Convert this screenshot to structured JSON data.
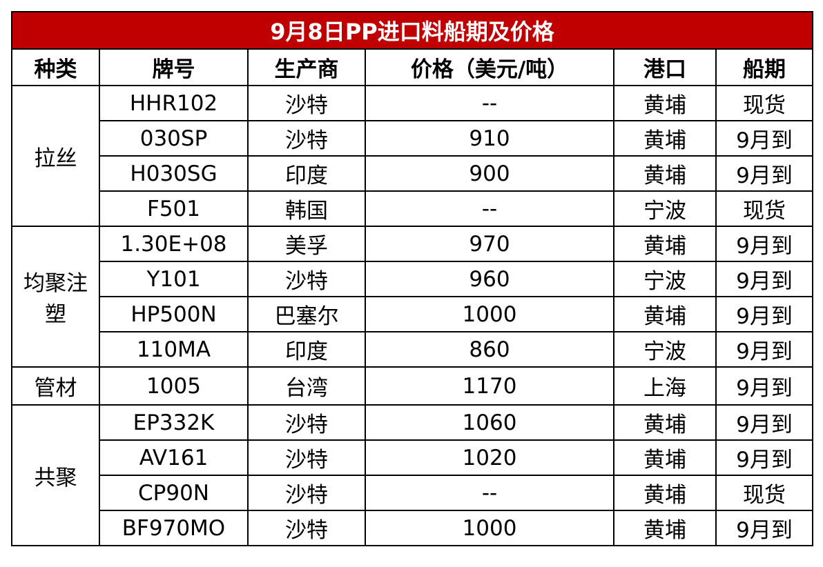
{
  "title": "9月8日PP进口料船期及价格",
  "colors": {
    "title_bg": "#c00000",
    "title_text": "#ffffff"
  },
  "headers": [
    "种类",
    "牌号",
    "生产商",
    "价格（美元/吨）",
    "港口",
    "船期"
  ],
  "groups": [
    {
      "category": "拉丝",
      "rows": [
        [
          "HHR102",
          "沙特",
          "--",
          "黄埔",
          "现货"
        ],
        [
          "030SP",
          "沙特",
          "910",
          "黄埔",
          "9月到"
        ],
        [
          "H030SG",
          "印度",
          "900",
          "黄埔",
          "9月到"
        ],
        [
          "F501",
          "韩国",
          "--",
          "宁波",
          "现货"
        ]
      ]
    },
    {
      "category": "均聚注塑",
      "rows": [
        [
          "1.30E+08",
          "美孚",
          "970",
          "黄埔",
          "9月到"
        ],
        [
          "Y101",
          "沙特",
          "960",
          "宁波",
          "9月到"
        ],
        [
          "HP500N",
          "巴塞尔",
          "1000",
          "黄埔",
          "9月到"
        ],
        [
          "110MA",
          "印度",
          "860",
          "宁波",
          "9月到"
        ]
      ]
    },
    {
      "category": "管材",
      "rows": [
        [
          "1005",
          "台湾",
          "1170",
          "上海",
          "9月到"
        ]
      ]
    },
    {
      "category": "共聚",
      "rows": [
        [
          "EP332K",
          "沙特",
          "1060",
          "黄埔",
          "9月到"
        ],
        [
          "AV161",
          "沙特",
          "1020",
          "黄埔",
          "9月到"
        ],
        [
          "CP90N",
          "沙特",
          "--",
          "黄埔",
          "现货"
        ],
        [
          "BF970MO",
          "沙特",
          "1000",
          "黄埔",
          "9月到"
        ]
      ]
    }
  ]
}
